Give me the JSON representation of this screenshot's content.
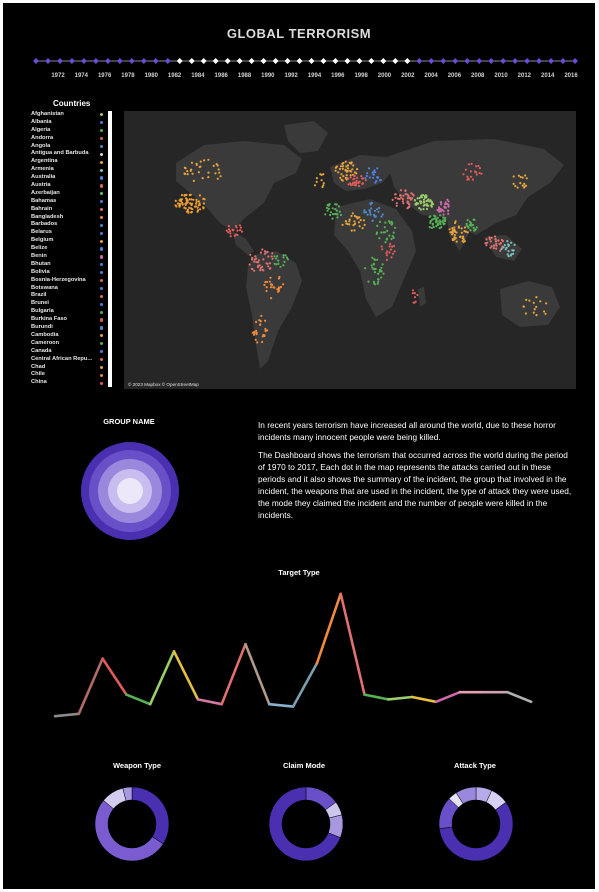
{
  "dashboard": {
    "title": "GLOBAL  TERRORISM",
    "timeline_years": [
      "1972",
      "1974",
      "1976",
      "1978",
      "1980",
      "1982",
      "1984",
      "1986",
      "1988",
      "1990",
      "1992",
      "1994",
      "1996",
      "1998",
      "2000",
      "2002",
      "2004",
      "2006",
      "2008",
      "2010",
      "2012",
      "2014",
      "2016"
    ],
    "countries_title": "Countries",
    "countries": [
      {
        "name": "Afghanistan",
        "color": "#9acd6a"
      },
      {
        "name": "Albania",
        "color": "#4f7fdc"
      },
      {
        "name": "Algeria",
        "color": "#56b056"
      },
      {
        "name": "Andorra",
        "color": "#e05a5a"
      },
      {
        "name": "Angola",
        "color": "#4e8ac8"
      },
      {
        "name": "Antigua and Barbuda",
        "color": "#d9d9d9"
      },
      {
        "name": "Argentina",
        "color": "#e8a33a"
      },
      {
        "name": "Armenia",
        "color": "#7ec1c1"
      },
      {
        "name": "Australia",
        "color": "#4f7fdc"
      },
      {
        "name": "Austria",
        "color": "#d66a6a"
      },
      {
        "name": "Azerbaijan",
        "color": "#6cc06c"
      },
      {
        "name": "Bahamas",
        "color": "#4f7fdc"
      },
      {
        "name": "Bahrain",
        "color": "#e07070"
      },
      {
        "name": "Bangladesh",
        "color": "#f08a3c"
      },
      {
        "name": "Barbados",
        "color": "#4e8ac8"
      },
      {
        "name": "Belarus",
        "color": "#4f7fdc"
      },
      {
        "name": "Belgium",
        "color": "#e8a33a"
      },
      {
        "name": "Belize",
        "color": "#4f7fdc"
      },
      {
        "name": "Benin",
        "color": "#cc6aa8"
      },
      {
        "name": "Bhutan",
        "color": "#4f7fdc"
      },
      {
        "name": "Bolivia",
        "color": "#4f7fdc"
      },
      {
        "name": "Bosnia-Herzegovina",
        "color": "#d66a6a"
      },
      {
        "name": "Botswana",
        "color": "#4f7fdc"
      },
      {
        "name": "Brazil",
        "color": "#e07070"
      },
      {
        "name": "Brunei",
        "color": "#4f7fdc"
      },
      {
        "name": "Bulgaria",
        "color": "#56b056"
      },
      {
        "name": "Burkina Faso",
        "color": "#e05a5a"
      },
      {
        "name": "Burundi",
        "color": "#4e8ac8"
      },
      {
        "name": "Cambodia",
        "color": "#e8a33a"
      },
      {
        "name": "Cameroon",
        "color": "#56b056"
      },
      {
        "name": "Canada",
        "color": "#4f7fdc"
      },
      {
        "name": "Central African Repu...",
        "color": "#d66a6a"
      },
      {
        "name": "Chad",
        "color": "#e8a33a"
      },
      {
        "name": "Chile",
        "color": "#f08a3c"
      },
      {
        "name": "China",
        "color": "#e05a5a"
      }
    ],
    "map_attribution": "© 2023 Mapbox  © OpenStreetMap",
    "group_title": "GROUP NAME",
    "description": [
      "In recent years terrorism have increased all around the world, due to these horror incidents many innocent people were being killed.",
      " The Dashboard shows the terrorism that occurred across the world during the period of 1970 to 2017, Each dot in the map represents the attacks carried out in these periods and it also shows the summary of the incident, the group that involved in the incident, the weapons that are used in the incident, the type of attack they were used, the mode they claimed the incident and the number of people were killed in the incidents."
    ],
    "accent": "#5a3fb0",
    "donuts": [
      {
        "title": "Weapon Type",
        "slices": [
          {
            "value": 0.34,
            "color": "#4a2fb0"
          },
          {
            "value": 0.52,
            "color": "#7a5cd0"
          },
          {
            "value": 0.1,
            "color": "#d4ccf0"
          },
          {
            "value": 0.04,
            "color": "#a898e0"
          }
        ]
      },
      {
        "title": "Claim Mode",
        "slices": [
          {
            "value": 0.15,
            "color": "#6a50c8"
          },
          {
            "value": 0.06,
            "color": "#cfc6ee"
          },
          {
            "value": 0.1,
            "color": "#a898e0"
          },
          {
            "value": 0.69,
            "color": "#4a2fb0"
          }
        ]
      },
      {
        "title": "Attack Type",
        "slices": [
          {
            "value": 0.07,
            "color": "#b7aae8"
          },
          {
            "value": 0.08,
            "color": "#d8d0f4"
          },
          {
            "value": 0.58,
            "color": "#4a2fb0"
          },
          {
            "value": 0.14,
            "color": "#6a50c8"
          },
          {
            "value": 0.04,
            "color": "#e6e0f8"
          },
          {
            "value": 0.09,
            "color": "#9a88dc"
          }
        ]
      }
    ]
  },
  "chart_data": [
    {
      "type": "line",
      "title": "Target Type",
      "x": [
        1,
        2,
        3,
        4,
        5,
        6,
        7,
        8,
        9,
        10,
        11,
        12,
        13,
        14,
        15,
        16,
        17,
        18,
        19,
        20,
        21,
        22
      ],
      "values": [
        2,
        3,
        26,
        11,
        7,
        29,
        9,
        7,
        32,
        7,
        6,
        24,
        53,
        11,
        9,
        10,
        8,
        12,
        12,
        12,
        8,
        null
      ],
      "ylim": [
        0,
        55
      ]
    }
  ]
}
